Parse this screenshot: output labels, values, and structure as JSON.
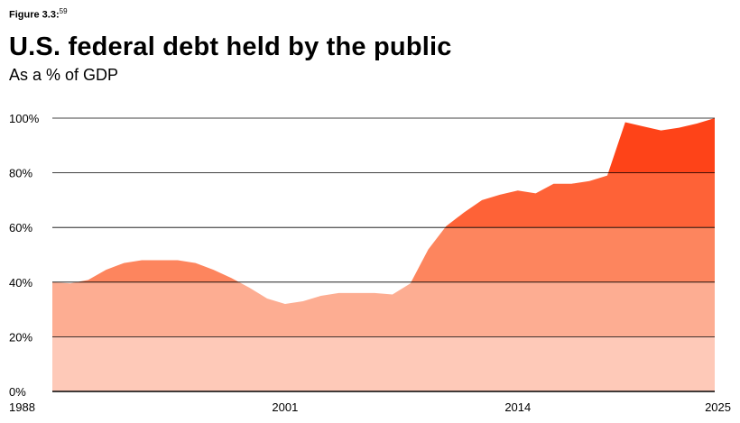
{
  "figure_label": "Figure 3.3:",
  "figure_footnote": "59",
  "chart_data": {
    "type": "area",
    "title": "U.S. federal debt held by the public",
    "subtitle": "As a % of GDP",
    "xlabel": "",
    "ylabel": "",
    "ylim": [
      0,
      100
    ],
    "xlim": [
      1988,
      2025
    ],
    "grid": true,
    "y_ticks": [
      0,
      20,
      40,
      60,
      80,
      100
    ],
    "y_tick_labels": [
      "0%",
      "20%",
      "40%",
      "60%",
      "80%",
      "100%"
    ],
    "x_ticks": [
      1988,
      2001,
      2014,
      2025
    ],
    "x_tick_labels": [
      "1988",
      "2001",
      "2014",
      "2025"
    ],
    "band_colors": [
      "#fec9b8",
      "#fdad92",
      "#fd855e",
      "#fe6237",
      "#fe4318"
    ],
    "x": [
      1988,
      1989,
      1990,
      1991,
      1992,
      1993,
      1994,
      1995,
      1996,
      1997,
      1998,
      1999,
      2000,
      2001,
      2002,
      2003,
      2004,
      2005,
      2006,
      2007,
      2008,
      2009,
      2010,
      2011,
      2012,
      2013,
      2014,
      2015,
      2016,
      2017,
      2018,
      2019,
      2020,
      2021,
      2022,
      2023,
      2024,
      2025
    ],
    "y": [
      40,
      39.5,
      40.8,
      44.5,
      47,
      48,
      48,
      48,
      47,
      44.5,
      41.5,
      38,
      34,
      32,
      33,
      35,
      36,
      36,
      36,
      35.5,
      39.5,
      52,
      60.5,
      65.5,
      70,
      72,
      73.5,
      72.5,
      76,
      76,
      77,
      79,
      98.5,
      97,
      95.5,
      96.5,
      98,
      100
    ]
  }
}
